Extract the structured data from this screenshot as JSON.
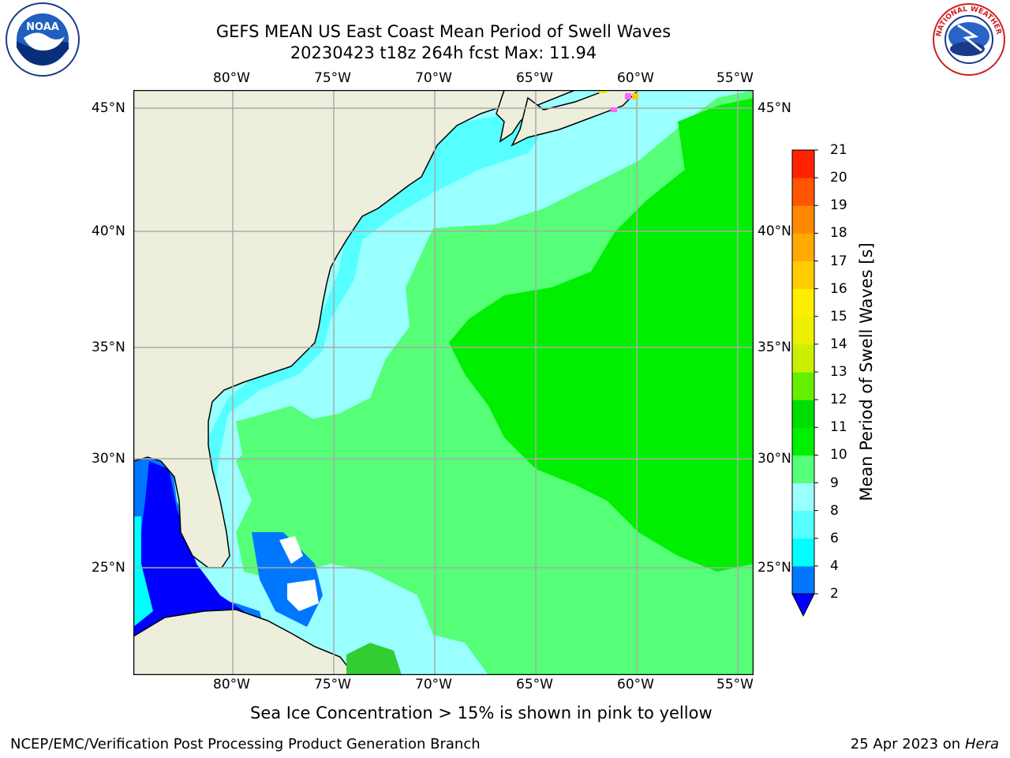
{
  "title": {
    "line1": "GEFS MEAN US East Coast Mean Period of Swell Waves",
    "line2": "20230423 t18z 264h fcst   Max: 11.94"
  },
  "map": {
    "lon_labels": [
      "80°W",
      "75°W",
      "70°W",
      "65°W",
      "60°W",
      "55°W"
    ],
    "lat_labels": [
      "45°N",
      "40°N",
      "35°N",
      "30°N",
      "25°N"
    ],
    "colors": {
      "land": "#eeeedd",
      "cyan": "#00ffff",
      "light_cyan": "#99ffff",
      "aqua": "#55ffff",
      "green_light": "#55ff77",
      "green": "#00ee00",
      "blue": "#0000ff",
      "blue_mid": "#0077ff",
      "white": "#ffffff"
    }
  },
  "colorbar": {
    "label": "Mean Period of Swell Waves [s]",
    "ticks": [
      "2",
      "4",
      "6",
      "8",
      "9",
      "10",
      "11",
      "12",
      "13",
      "14",
      "15",
      "16",
      "17",
      "18",
      "19",
      "20",
      "21"
    ],
    "colors": [
      "#0077ff",
      "#00ffff",
      "#55ffff",
      "#99ffff",
      "#55ff77",
      "#00ee00",
      "#00dd00",
      "#66ee00",
      "#ccee00",
      "#eeee00",
      "#ffee00",
      "#ffcc00",
      "#ffaa00",
      "#ff8800",
      "#ff5500",
      "#ff2200"
    ],
    "under_color": "#0000ff"
  },
  "note": "Sea Ice Concentration > 15% is shown in pink to yellow",
  "footer": {
    "left": "NCEP/EMC/Verification Post Processing Product Generation Branch",
    "right_date": "25 Apr 2023 on ",
    "right_machine": "Hera"
  },
  "logos": {
    "noaa_text": "NOAA",
    "nws_text": "NATIONAL WEATHER SERVICE"
  }
}
